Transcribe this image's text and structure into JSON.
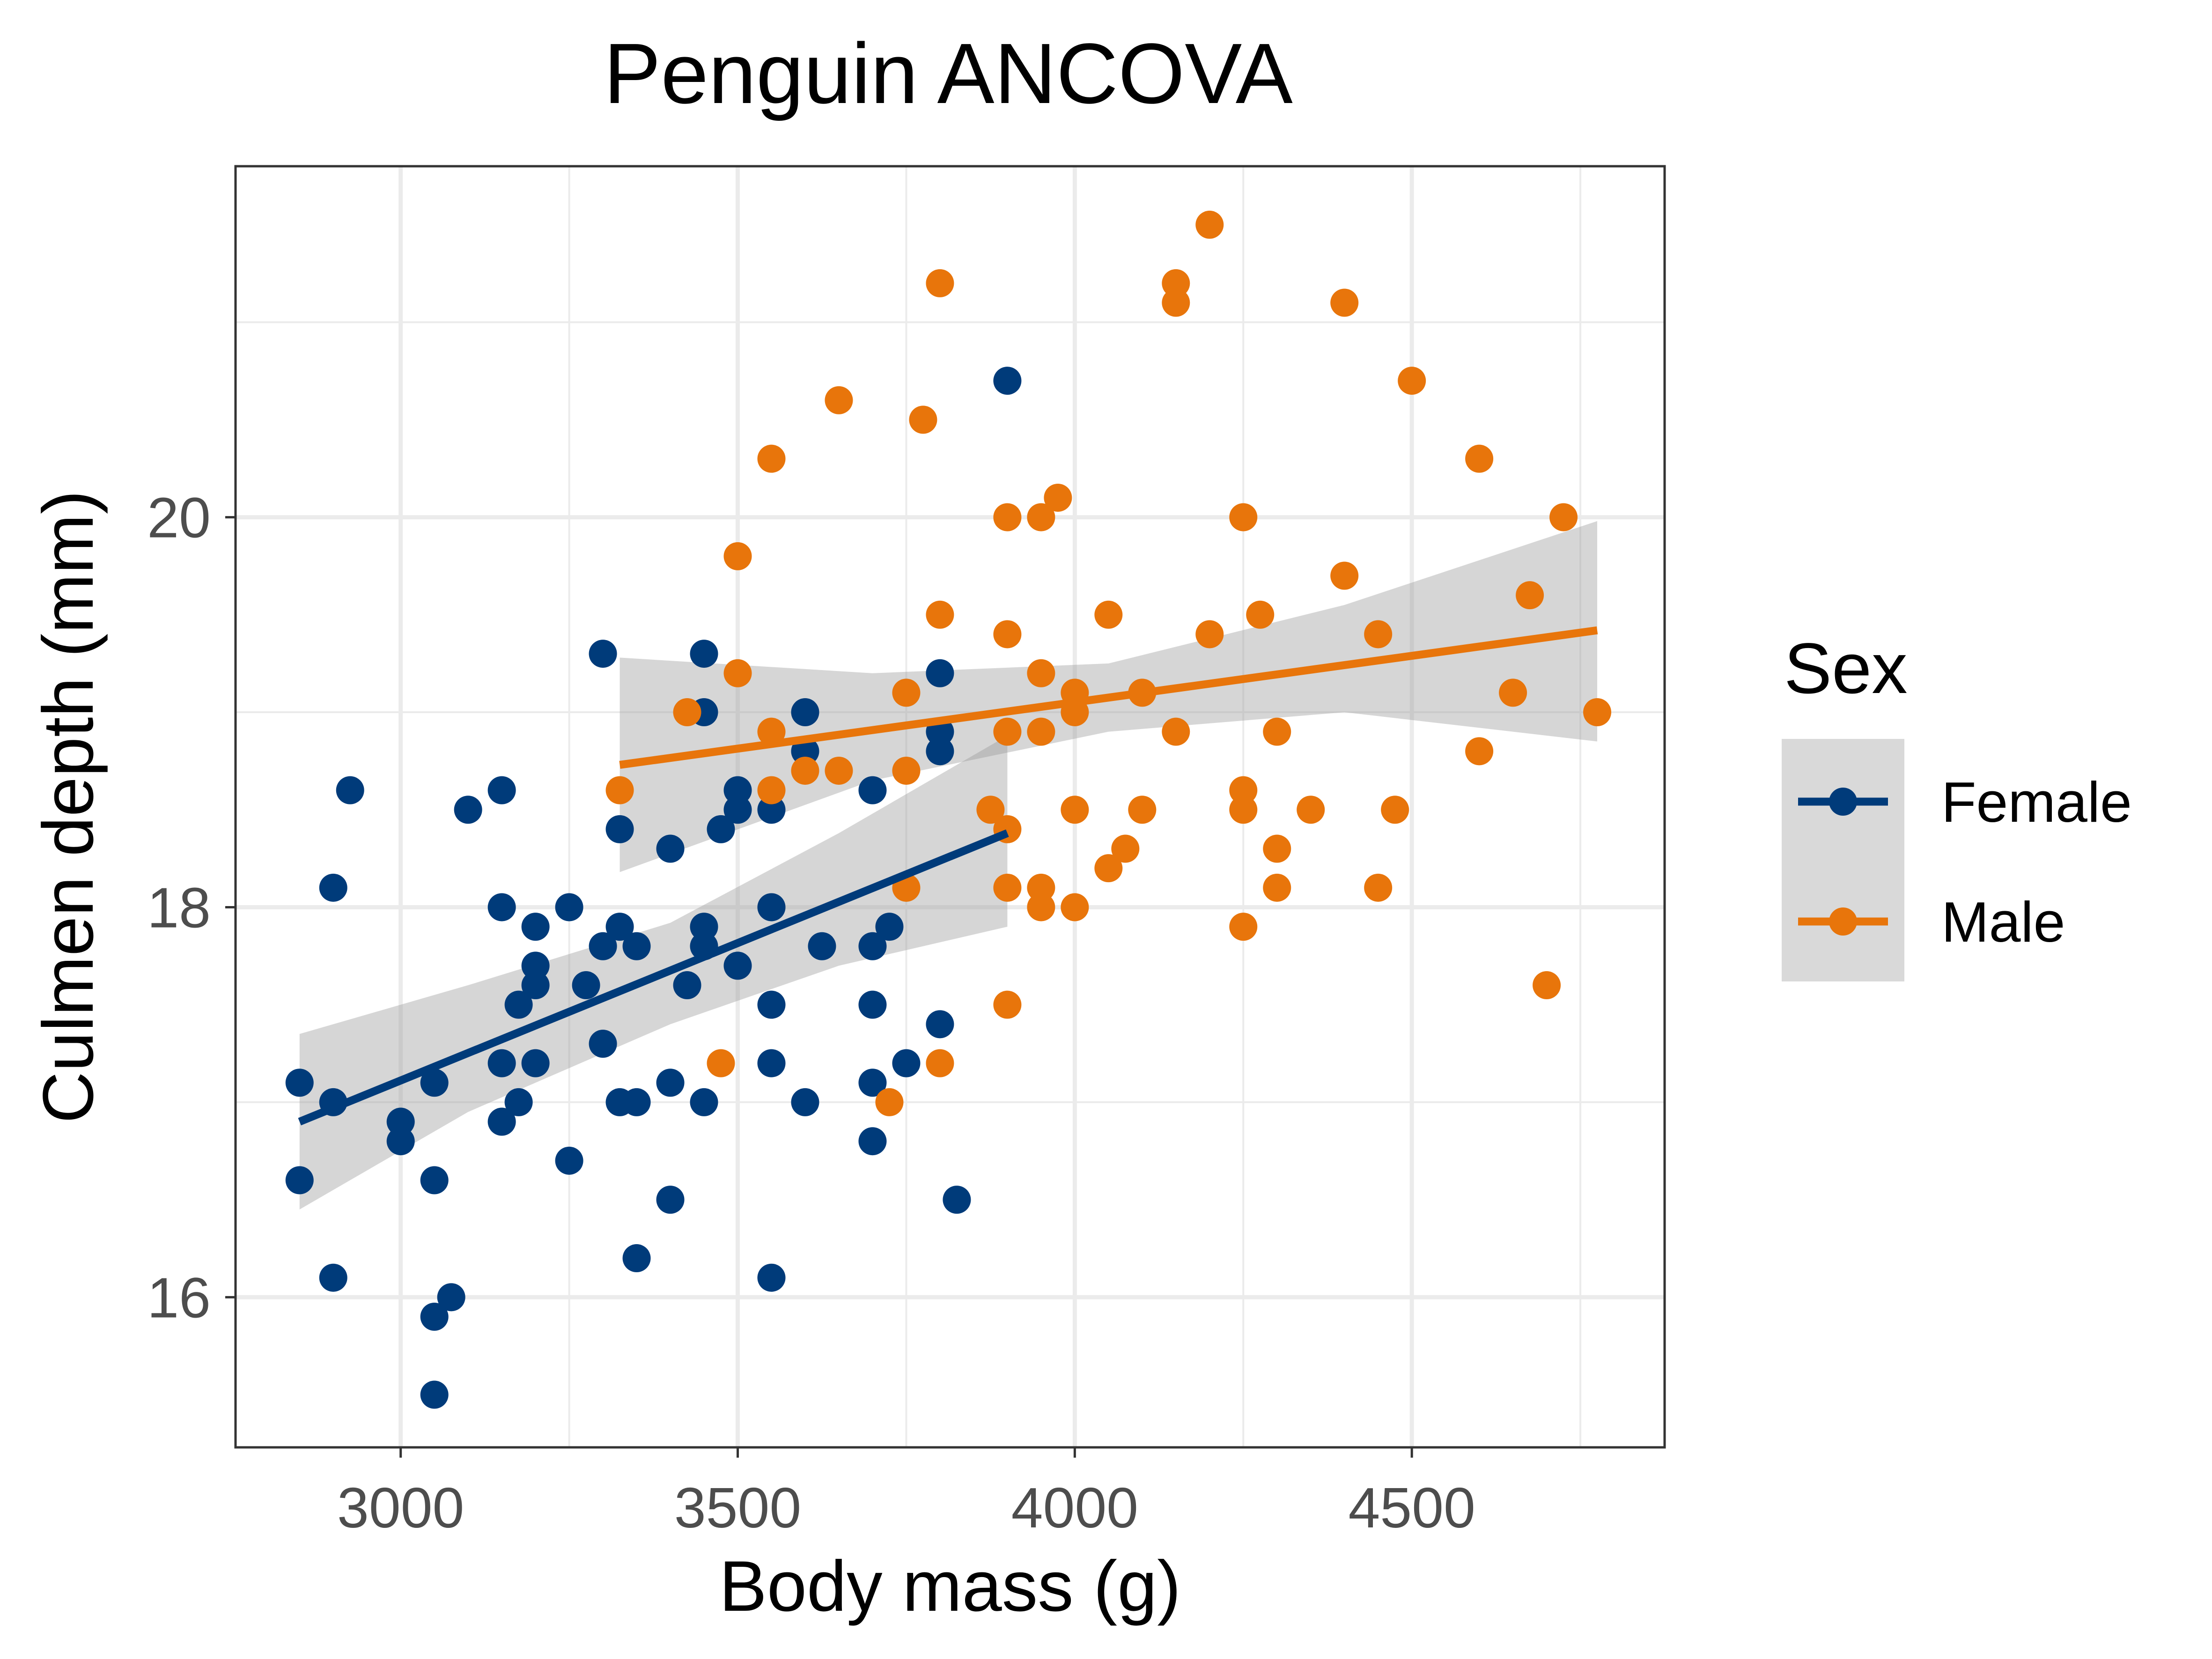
{
  "chart_data": {
    "type": "scatter",
    "title": "Penguin ANCOVA",
    "xlabel": "Body mass (g)",
    "ylabel": "Culmen depth (mm)",
    "xlim": [
      2755,
      4875
    ],
    "ylim": [
      15.23,
      21.8
    ],
    "x_ticks": [
      3000,
      3500,
      4000,
      4500
    ],
    "x_tick_labels": [
      "3000",
      "3500",
      "4000",
      "4500"
    ],
    "y_ticks": [
      16,
      18,
      20
    ],
    "y_tick_labels": [
      "16",
      "18",
      "20"
    ],
    "grid": true,
    "legend": {
      "title": "Sex",
      "placement": "right"
    },
    "series": [
      {
        "name": "Female",
        "color": "#003B7A",
        "points": [
          [
            2850,
            17.1
          ],
          [
            2850,
            16.6
          ],
          [
            2900,
            17.0
          ],
          [
            2900,
            18.1
          ],
          [
            2900,
            16.1
          ],
          [
            2925,
            18.6
          ],
          [
            3000,
            16.9
          ],
          [
            3000,
            16.8
          ],
          [
            3050,
            17.1
          ],
          [
            3050,
            16.6
          ],
          [
            3050,
            15.9
          ],
          [
            3050,
            15.5
          ],
          [
            3075,
            16.0
          ],
          [
            3100,
            18.5
          ],
          [
            3150,
            18.6
          ],
          [
            3150,
            18.0
          ],
          [
            3150,
            17.2
          ],
          [
            3150,
            16.9
          ],
          [
            3175,
            17.5
          ],
          [
            3175,
            17.0
          ],
          [
            3200,
            17.9
          ],
          [
            3200,
            17.7
          ],
          [
            3200,
            17.6
          ],
          [
            3200,
            17.2
          ],
          [
            3250,
            18.0
          ],
          [
            3250,
            16.7
          ],
          [
            3275,
            17.6
          ],
          [
            3300,
            19.3
          ],
          [
            3300,
            17.8
          ],
          [
            3300,
            17.3
          ],
          [
            3325,
            18.4
          ],
          [
            3325,
            17.9
          ],
          [
            3325,
            17.0
          ],
          [
            3350,
            17.8
          ],
          [
            3350,
            17.0
          ],
          [
            3350,
            16.2
          ],
          [
            3400,
            18.3
          ],
          [
            3400,
            17.1
          ],
          [
            3400,
            16.5
          ],
          [
            3425,
            17.6
          ],
          [
            3450,
            19.3
          ],
          [
            3450,
            19.0
          ],
          [
            3450,
            17.9
          ],
          [
            3450,
            17.8
          ],
          [
            3450,
            17.0
          ],
          [
            3475,
            18.4
          ],
          [
            3500,
            18.6
          ],
          [
            3500,
            18.5
          ],
          [
            3500,
            17.7
          ],
          [
            3550,
            18.5
          ],
          [
            3550,
            18.0
          ],
          [
            3550,
            17.5
          ],
          [
            3550,
            17.2
          ],
          [
            3550,
            16.1
          ],
          [
            3600,
            19.0
          ],
          [
            3600,
            18.8
          ],
          [
            3600,
            17.0
          ],
          [
            3625,
            17.8
          ],
          [
            3700,
            18.6
          ],
          [
            3700,
            17.8
          ],
          [
            3700,
            17.5
          ],
          [
            3700,
            17.1
          ],
          [
            3700,
            16.8
          ],
          [
            3725,
            17.9
          ],
          [
            3750,
            17.2
          ],
          [
            3800,
            19.2
          ],
          [
            3800,
            18.9
          ],
          [
            3800,
            18.8
          ],
          [
            3800,
            17.4
          ],
          [
            3825,
            16.5
          ],
          [
            3900,
            20.7
          ]
        ],
        "fit": {
          "x": [
            2850,
            3900
          ],
          "y": [
            16.9,
            18.38
          ]
        },
        "band": {
          "x": [
            2850,
            3100,
            3400,
            3650,
            3900
          ],
          "lower": [
            16.45,
            16.95,
            17.4,
            17.7,
            17.9
          ],
          "upper": [
            17.35,
            17.6,
            17.92,
            18.38,
            18.88
          ]
        }
      },
      {
        "name": "Male",
        "color": "#E8750B",
        "points": [
          [
            3325,
            18.6
          ],
          [
            3425,
            19.0
          ],
          [
            3475,
            17.2
          ],
          [
            3500,
            19.8
          ],
          [
            3500,
            19.2
          ],
          [
            3550,
            20.3
          ],
          [
            3550,
            18.9
          ],
          [
            3550,
            18.6
          ],
          [
            3600,
            18.7
          ],
          [
            3650,
            20.6
          ],
          [
            3650,
            18.7
          ],
          [
            3725,
            17.0
          ],
          [
            3750,
            19.1
          ],
          [
            3750,
            18.7
          ],
          [
            3750,
            18.1
          ],
          [
            3775,
            20.5
          ],
          [
            3800,
            21.2
          ],
          [
            3800,
            19.5
          ],
          [
            3800,
            17.2
          ],
          [
            3875,
            18.5
          ],
          [
            3900,
            20.0
          ],
          [
            3900,
            19.4
          ],
          [
            3900,
            18.9
          ],
          [
            3900,
            18.4
          ],
          [
            3900,
            18.1
          ],
          [
            3900,
            17.5
          ],
          [
            3950,
            20.0
          ],
          [
            3950,
            19.2
          ],
          [
            3950,
            18.9
          ],
          [
            3950,
            18.1
          ],
          [
            3950,
            18.0
          ],
          [
            3975,
            20.1
          ],
          [
            4000,
            19.1
          ],
          [
            4000,
            19.0
          ],
          [
            4000,
            18.5
          ],
          [
            4000,
            18.0
          ],
          [
            4050,
            19.5
          ],
          [
            4050,
            18.2
          ],
          [
            4075,
            18.3
          ],
          [
            4100,
            19.1
          ],
          [
            4100,
            18.5
          ],
          [
            4150,
            21.2
          ],
          [
            4150,
            21.1
          ],
          [
            4150,
            18.9
          ],
          [
            4200,
            21.5
          ],
          [
            4200,
            19.4
          ],
          [
            4250,
            20.0
          ],
          [
            4250,
            18.6
          ],
          [
            4250,
            18.5
          ],
          [
            4250,
            17.9
          ],
          [
            4275,
            19.5
          ],
          [
            4300,
            18.9
          ],
          [
            4300,
            18.3
          ],
          [
            4300,
            18.1
          ],
          [
            4350,
            18.5
          ],
          [
            4400,
            21.1
          ],
          [
            4400,
            19.7
          ],
          [
            4450,
            19.4
          ],
          [
            4450,
            18.1
          ],
          [
            4475,
            18.5
          ],
          [
            4500,
            20.7
          ],
          [
            4600,
            20.3
          ],
          [
            4600,
            18.8
          ],
          [
            4650,
            19.1
          ],
          [
            4675,
            19.6
          ],
          [
            4700,
            17.6
          ],
          [
            4725,
            20.0
          ],
          [
            4775,
            19.0
          ]
        ],
        "fit": {
          "x": [
            3325,
            4775
          ],
          "y": [
            18.73,
            19.42
          ]
        },
        "band": {
          "x": [
            3325,
            3700,
            4050,
            4400,
            4775
          ],
          "lower": [
            18.18,
            18.65,
            18.9,
            19.0,
            18.85
          ],
          "upper": [
            19.28,
            19.2,
            19.25,
            19.55,
            19.98
          ]
        }
      }
    ]
  },
  "colors": {
    "band": "#999999",
    "grid": "#ebebeb",
    "panel_border": "#333333",
    "legend_key_bg": "#d9d9d9"
  }
}
